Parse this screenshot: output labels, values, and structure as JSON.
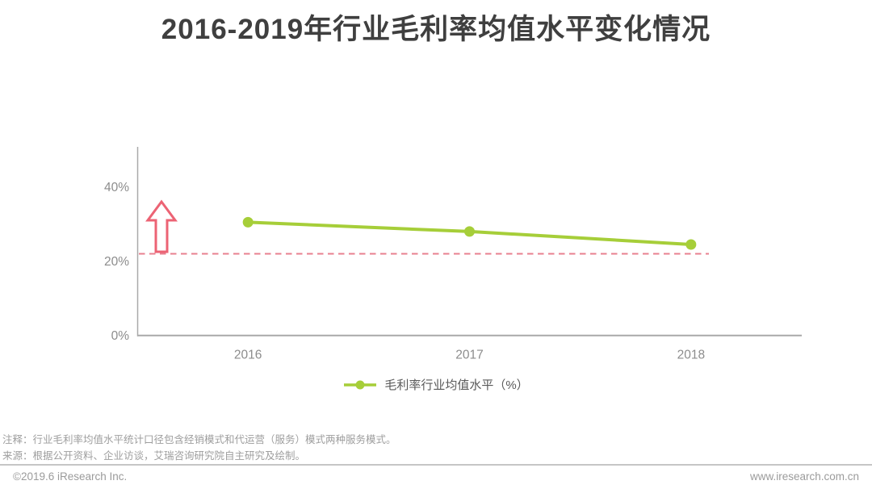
{
  "title": "2016-2019年行业毛利率均值水平变化情况",
  "notes": {
    "annotation": "注释：行业毛利率均值水平统计口径包含经销模式和代运营（服务）模式两种服务模式。",
    "source": "来源：根据公开资料、企业访谈，艾瑞咨询研究院自主研究及绘制。"
  },
  "footer": {
    "copyright": "©2019.6 iResearch Inc.",
    "website": "www.iresearch.com.cn"
  },
  "colors": {
    "series_green": "#a6ce39",
    "arrow_pink": "#ec6374",
    "reference_pink": "#e8808f",
    "axis_gray": "#a9a9a9",
    "tick_label_gray": "#8c8c8c",
    "title_gray": "#3f3f3f"
  },
  "chart_data": {
    "type": "line",
    "title": "2016-2019年行业毛利率均值水平变化情况",
    "categories": [
      "2016",
      "2017",
      "2018"
    ],
    "series": [
      {
        "name": "毛利率行业均值水平（%）",
        "values": [
          30.5,
          28.0,
          24.5
        ]
      }
    ],
    "xlabel": "",
    "ylabel": "",
    "ylim": [
      0,
      50
    ],
    "y_ticks": [
      0,
      20,
      40
    ],
    "y_tick_suffix": "%",
    "grid": false,
    "legend_position": "bottom-center",
    "reference_line": {
      "value": 22,
      "style": "dashed",
      "color": "#e8808f"
    },
    "annotations": [
      {
        "type": "hollow-up-arrow",
        "color": "#ec6374"
      }
    ]
  }
}
